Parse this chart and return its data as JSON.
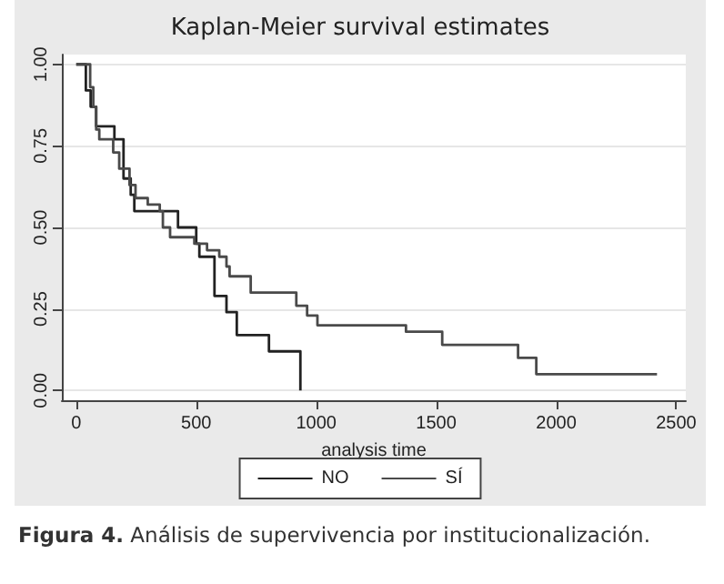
{
  "chart_data": {
    "type": "step",
    "title": "Kaplan-Meier survival estimates",
    "xlabel": "analysis time",
    "xlim": [
      -60,
      2540
    ],
    "xticks": [
      0,
      500,
      1000,
      1500,
      2000,
      2500
    ],
    "ylim": [
      -0.03,
      1.03
    ],
    "yticks": [
      {
        "value": 0,
        "label": "0.00"
      },
      {
        "value": 0.25,
        "label": "0.25"
      },
      {
        "value": 0.5,
        "label": "0.50"
      },
      {
        "value": 0.75,
        "label": "0.75"
      },
      {
        "value": 1,
        "label": "1.00"
      }
    ],
    "grid": "y",
    "legend": "bottom",
    "line_style": "solid",
    "marker": "none",
    "series": [
      {
        "name": "NO",
        "color": "#222222",
        "x": [
          0,
          40,
          60,
          83,
          159,
          197,
          227,
          242,
          424,
          500,
          513,
          576,
          626,
          669,
          803,
          934
        ],
        "values": [
          1,
          0.92,
          0.87,
          0.81,
          0.77,
          0.65,
          0.6,
          0.55,
          0.5,
          0.45,
          0.41,
          0.29,
          0.24,
          0.17,
          0.12,
          0
        ]
      },
      {
        "name": "SÍ",
        "color": "#4a4a4a",
        "x": [
          0,
          58,
          71,
          83,
          96,
          154,
          179,
          222,
          247,
          298,
          348,
          361,
          391,
          492,
          545,
          596,
          626,
          639,
          727,
          917,
          962,
          1005,
          1374,
          1525,
          1841,
          1917,
          2420
        ],
        "values": [
          1,
          0.93,
          0.87,
          0.8,
          0.77,
          0.73,
          0.68,
          0.63,
          0.59,
          0.57,
          0.55,
          0.5,
          0.47,
          0.45,
          0.43,
          0.41,
          0.38,
          0.35,
          0.3,
          0.26,
          0.23,
          0.2,
          0.18,
          0.14,
          0.1,
          0.05,
          0.05
        ]
      }
    ],
    "annotations": [
      "Figura 4. Análisis de supervivencia por institucionalización."
    ]
  }
}
